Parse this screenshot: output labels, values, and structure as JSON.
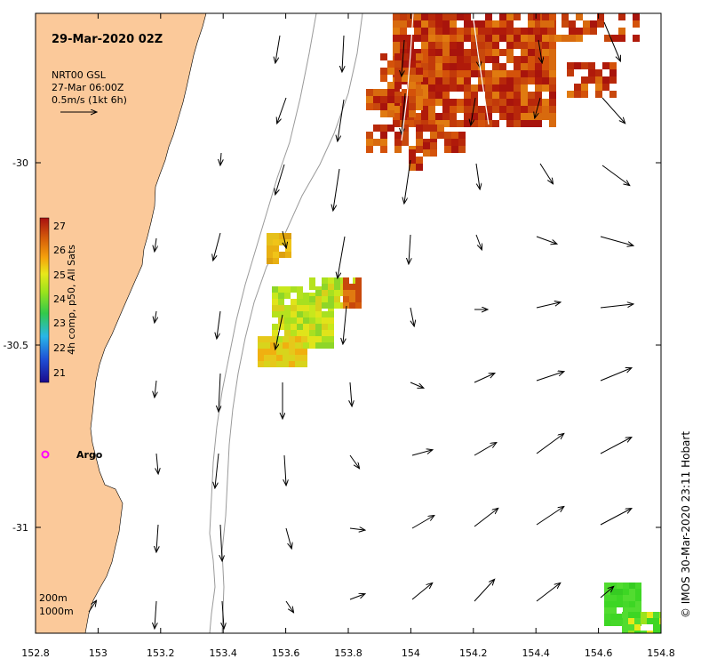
{
  "map": {
    "title": "29-Mar-2020 02Z",
    "product": {
      "line1": "NRT00 GSL",
      "line2": "27-Mar 06:00Z",
      "line3": "0.5m/s (1kt 6h)"
    },
    "colorbar": {
      "label": "4h comp, p50, All Sats",
      "ticks": [
        "27",
        "26",
        "25",
        "24",
        "23",
        "22",
        "21"
      ],
      "colors": [
        "#1a0a8c",
        "#1f4fd6",
        "#29b6e8",
        "#32c94a",
        "#9be31c",
        "#e8e81a",
        "#f5a10c",
        "#d45a0a",
        "#a81010"
      ]
    },
    "x_ticks": [
      "152.8",
      "153",
      "153.2",
      "153.4",
      "153.6",
      "153.8",
      "154",
      "154.2",
      "154.4",
      "154.6",
      "154.8"
    ],
    "y_ticks": [
      "-30",
      "-30.5",
      "-31"
    ],
    "marker_label": "Argo",
    "isobaths": {
      "line1": "200m",
      "line2": "1000m"
    },
    "credit": "© IMOS 30-Mar-2020 23:11 Hobart",
    "colors": {
      "land": "#fbc99a",
      "warm": "#b5240a",
      "mid": "#e2a410",
      "green": "#3dd624",
      "argo": "#ff00ff"
    }
  }
}
